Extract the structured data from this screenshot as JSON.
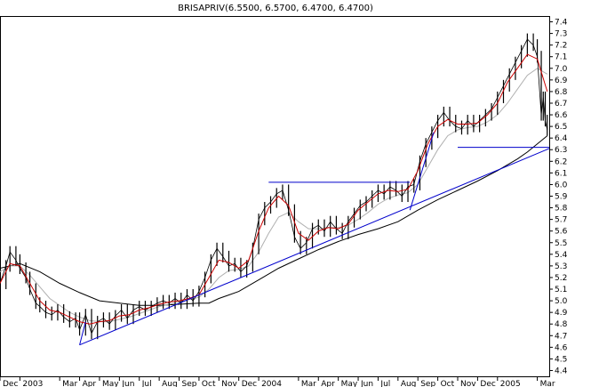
{
  "chart_data": {
    "type": "line",
    "title": "BRISAPRIV(6.5500, 6.5700, 6.4700, 6.4700)",
    "y_ticks": [
      "7.4",
      "7.3",
      "7.2",
      "7.1",
      "7.0",
      "6.9",
      "6.8",
      "6.7",
      "6.6",
      "6.5",
      "6.4",
      "6.3",
      "6.2",
      "6.1",
      "6.0",
      "5.9",
      "5.8",
      "5.7",
      "5.6",
      "5.5",
      "5.4",
      "5.3",
      "5.2",
      "5.1",
      "5.0",
      "4.9",
      "4.8",
      "4.7",
      "4.6",
      "4.5",
      "4.4"
    ],
    "ylim": [
      4.35,
      7.45
    ],
    "x_labels": [
      "Dec",
      "2003",
      "Mar",
      "Apr",
      "May",
      "Jun",
      "Jul",
      "Aug",
      "Sep",
      "Oct",
      "Nov",
      "Dec",
      "2004",
      "Mar",
      "Apr",
      "May",
      "Jun",
      "Jul",
      "Aug",
      "Sep",
      "Oct",
      "Nov",
      "Dec",
      "2005",
      "Mar"
    ],
    "x_label_positions": [
      0,
      1,
      3,
      4,
      5,
      6,
      7,
      8,
      9,
      10,
      11,
      12,
      13,
      15,
      16,
      17,
      18,
      19,
      20,
      21,
      22,
      23,
      24,
      25,
      27
    ],
    "x_range": [
      0,
      27.6
    ],
    "price_series": [
      [
        0.0,
        5.15
      ],
      [
        0.3,
        5.3
      ],
      [
        0.5,
        5.42
      ],
      [
        0.8,
        5.35
      ],
      [
        1.0,
        5.28
      ],
      [
        1.3,
        5.2
      ],
      [
        1.5,
        5.1
      ],
      [
        1.8,
        4.98
      ],
      [
        2.0,
        4.95
      ],
      [
        2.3,
        4.9
      ],
      [
        2.6,
        4.88
      ],
      [
        2.9,
        4.92
      ],
      [
        3.2,
        4.86
      ],
      [
        3.5,
        4.82
      ],
      [
        3.8,
        4.85
      ],
      [
        4.0,
        4.75
      ],
      [
        4.3,
        4.88
      ],
      [
        4.6,
        4.72
      ],
      [
        4.9,
        4.82
      ],
      [
        5.2,
        4.85
      ],
      [
        5.5,
        4.8
      ],
      [
        5.8,
        4.87
      ],
      [
        6.1,
        4.92
      ],
      [
        6.4,
        4.85
      ],
      [
        6.7,
        4.92
      ],
      [
        7.0,
        4.95
      ],
      [
        7.3,
        4.92
      ],
      [
        7.6,
        4.95
      ],
      [
        7.9,
        4.98
      ],
      [
        8.2,
        5.0
      ],
      [
        8.5,
        4.98
      ],
      [
        8.8,
        5.02
      ],
      [
        9.1,
        4.98
      ],
      [
        9.4,
        5.05
      ],
      [
        9.7,
        5.0
      ],
      [
        10.0,
        5.08
      ],
      [
        10.3,
        5.2
      ],
      [
        10.6,
        5.35
      ],
      [
        10.9,
        5.45
      ],
      [
        11.2,
        5.38
      ],
      [
        11.5,
        5.3
      ],
      [
        11.8,
        5.32
      ],
      [
        12.1,
        5.25
      ],
      [
        12.4,
        5.3
      ],
      [
        12.7,
        5.45
      ],
      [
        13.0,
        5.7
      ],
      [
        13.3,
        5.8
      ],
      [
        13.6,
        5.85
      ],
      [
        13.9,
        5.92
      ],
      [
        14.2,
        5.95
      ],
      [
        14.5,
        5.78
      ],
      [
        14.8,
        5.55
      ],
      [
        15.1,
        5.45
      ],
      [
        15.4,
        5.5
      ],
      [
        15.7,
        5.62
      ],
      [
        16.0,
        5.65
      ],
      [
        16.3,
        5.6
      ],
      [
        16.6,
        5.68
      ],
      [
        16.9,
        5.62
      ],
      [
        17.2,
        5.58
      ],
      [
        17.5,
        5.68
      ],
      [
        17.8,
        5.75
      ],
      [
        18.1,
        5.82
      ],
      [
        18.4,
        5.85
      ],
      [
        18.7,
        5.9
      ],
      [
        19.0,
        5.95
      ],
      [
        19.3,
        5.92
      ],
      [
        19.6,
        5.98
      ],
      [
        19.9,
        5.95
      ],
      [
        20.2,
        5.9
      ],
      [
        20.5,
        5.98
      ],
      [
        20.8,
        6.0
      ],
      [
        21.1,
        6.2
      ],
      [
        21.4,
        6.35
      ],
      [
        21.7,
        6.45
      ],
      [
        22.0,
        6.55
      ],
      [
        22.3,
        6.62
      ],
      [
        22.6,
        6.55
      ],
      [
        22.9,
        6.5
      ],
      [
        23.2,
        6.48
      ],
      [
        23.5,
        6.55
      ],
      [
        23.8,
        6.5
      ],
      [
        24.1,
        6.55
      ],
      [
        24.4,
        6.6
      ],
      [
        24.7,
        6.65
      ],
      [
        25.0,
        6.75
      ],
      [
        25.3,
        6.85
      ],
      [
        25.6,
        6.95
      ],
      [
        25.9,
        7.05
      ],
      [
        26.2,
        7.15
      ],
      [
        26.5,
        7.25
      ],
      [
        26.8,
        7.2
      ],
      [
        27.0,
        7.1
      ],
      [
        27.2,
        6.6
      ],
      [
        27.3,
        6.75
      ],
      [
        27.4,
        6.55
      ],
      [
        27.5,
        6.47
      ]
    ],
    "ema_fast": [
      [
        0.0,
        5.15
      ],
      [
        0.5,
        5.32
      ],
      [
        1.0,
        5.3
      ],
      [
        1.5,
        5.15
      ],
      [
        2.0,
        5.0
      ],
      [
        2.5,
        4.92
      ],
      [
        3.0,
        4.9
      ],
      [
        3.5,
        4.86
      ],
      [
        4.0,
        4.82
      ],
      [
        4.5,
        4.8
      ],
      [
        5.0,
        4.82
      ],
      [
        5.5,
        4.83
      ],
      [
        6.0,
        4.87
      ],
      [
        6.5,
        4.88
      ],
      [
        7.0,
        4.92
      ],
      [
        7.5,
        4.94
      ],
      [
        8.0,
        4.97
      ],
      [
        8.5,
        4.99
      ],
      [
        9.0,
        5.0
      ],
      [
        9.5,
        5.02
      ],
      [
        10.0,
        5.05
      ],
      [
        10.5,
        5.2
      ],
      [
        11.0,
        5.35
      ],
      [
        11.5,
        5.33
      ],
      [
        12.0,
        5.28
      ],
      [
        12.5,
        5.35
      ],
      [
        13.0,
        5.6
      ],
      [
        13.5,
        5.8
      ],
      [
        14.0,
        5.9
      ],
      [
        14.5,
        5.82
      ],
      [
        15.0,
        5.58
      ],
      [
        15.5,
        5.52
      ],
      [
        16.0,
        5.6
      ],
      [
        16.5,
        5.63
      ],
      [
        17.0,
        5.62
      ],
      [
        17.5,
        5.66
      ],
      [
        18.0,
        5.78
      ],
      [
        18.5,
        5.85
      ],
      [
        19.0,
        5.92
      ],
      [
        19.5,
        5.95
      ],
      [
        20.0,
        5.94
      ],
      [
        20.5,
        5.96
      ],
      [
        21.0,
        6.12
      ],
      [
        21.5,
        6.35
      ],
      [
        22.0,
        6.5
      ],
      [
        22.5,
        6.56
      ],
      [
        23.0,
        6.52
      ],
      [
        23.5,
        6.52
      ],
      [
        24.0,
        6.53
      ],
      [
        24.5,
        6.6
      ],
      [
        25.0,
        6.7
      ],
      [
        25.5,
        6.88
      ],
      [
        26.0,
        7.0
      ],
      [
        26.5,
        7.12
      ],
      [
        27.0,
        7.08
      ],
      [
        27.5,
        6.8
      ]
    ],
    "ema_mid": [
      [
        0.0,
        5.25
      ],
      [
        0.5,
        5.3
      ],
      [
        1.0,
        5.3
      ],
      [
        1.5,
        5.22
      ],
      [
        2.0,
        5.12
      ],
      [
        2.5,
        5.02
      ],
      [
        3.0,
        4.96
      ],
      [
        3.5,
        4.9
      ],
      [
        4.0,
        4.86
      ],
      [
        4.5,
        4.83
      ],
      [
        5.0,
        4.82
      ],
      [
        5.5,
        4.82
      ],
      [
        6.0,
        4.84
      ],
      [
        6.5,
        4.86
      ],
      [
        7.0,
        4.89
      ],
      [
        7.5,
        4.92
      ],
      [
        8.0,
        4.95
      ],
      [
        8.5,
        4.97
      ],
      [
        9.0,
        4.99
      ],
      [
        9.5,
        5.01
      ],
      [
        10.0,
        5.03
      ],
      [
        10.5,
        5.1
      ],
      [
        11.0,
        5.2
      ],
      [
        11.5,
        5.26
      ],
      [
        12.0,
        5.27
      ],
      [
        12.5,
        5.3
      ],
      [
        13.0,
        5.42
      ],
      [
        13.5,
        5.58
      ],
      [
        14.0,
        5.72
      ],
      [
        14.5,
        5.76
      ],
      [
        15.0,
        5.68
      ],
      [
        15.5,
        5.62
      ],
      [
        16.0,
        5.62
      ],
      [
        16.5,
        5.63
      ],
      [
        17.0,
        5.63
      ],
      [
        17.5,
        5.65
      ],
      [
        18.0,
        5.7
      ],
      [
        18.5,
        5.76
      ],
      [
        19.0,
        5.83
      ],
      [
        19.5,
        5.88
      ],
      [
        20.0,
        5.91
      ],
      [
        20.5,
        5.93
      ],
      [
        21.0,
        6.0
      ],
      [
        21.5,
        6.15
      ],
      [
        22.0,
        6.3
      ],
      [
        22.5,
        6.42
      ],
      [
        23.0,
        6.47
      ],
      [
        23.5,
        6.49
      ],
      [
        24.0,
        6.5
      ],
      [
        24.5,
        6.54
      ],
      [
        25.0,
        6.6
      ],
      [
        25.5,
        6.7
      ],
      [
        26.0,
        6.82
      ],
      [
        26.5,
        6.94
      ],
      [
        27.0,
        7.0
      ],
      [
        27.5,
        6.95
      ]
    ],
    "ema_slow": [
      [
        0.0,
        5.28
      ],
      [
        1.0,
        5.32
      ],
      [
        2.0,
        5.25
      ],
      [
        3.0,
        5.15
      ],
      [
        4.0,
        5.07
      ],
      [
        5.0,
        5.0
      ],
      [
        6.0,
        4.98
      ],
      [
        7.0,
        4.96
      ],
      [
        8.0,
        4.96
      ],
      [
        9.0,
        4.97
      ],
      [
        10.0,
        4.98
      ],
      [
        10.5,
        4.98
      ],
      [
        11.0,
        5.02
      ],
      [
        12.0,
        5.08
      ],
      [
        13.0,
        5.18
      ],
      [
        14.0,
        5.28
      ],
      [
        15.0,
        5.36
      ],
      [
        16.0,
        5.44
      ],
      [
        17.0,
        5.51
      ],
      [
        18.0,
        5.57
      ],
      [
        19.0,
        5.62
      ],
      [
        20.0,
        5.68
      ],
      [
        21.0,
        5.78
      ],
      [
        22.0,
        5.87
      ],
      [
        23.0,
        5.95
      ],
      [
        24.0,
        6.03
      ],
      [
        25.0,
        6.12
      ],
      [
        26.0,
        6.22
      ],
      [
        26.5,
        6.28
      ],
      [
        27.0,
        6.35
      ],
      [
        27.5,
        6.42
      ]
    ],
    "trendlines": [
      {
        "from": [
          4.0,
          4.62
        ],
        "to": [
          27.6,
          6.31
        ]
      },
      {
        "from": [
          13.5,
          6.02
        ],
        "to": [
          20.6,
          6.02
        ]
      },
      {
        "from": [
          20.6,
          5.78
        ],
        "to": [
          21.8,
          6.45
        ]
      },
      {
        "from": [
          4.0,
          4.62
        ],
        "to": [
          4.3,
          4.82
        ]
      },
      {
        "from": [
          23.0,
          6.32
        ],
        "to": [
          27.6,
          6.32
        ]
      }
    ],
    "colors": {
      "price": "#000000",
      "ema_fast": "#cc0000",
      "ema_mid": "#b0b0b0",
      "ema_slow": "#000000",
      "trendline": "#0000cc"
    },
    "grid": false
  }
}
